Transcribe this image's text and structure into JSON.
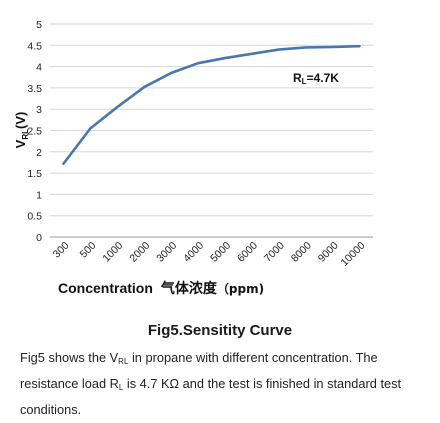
{
  "chart_data": {
    "type": "line",
    "x_categories": [
      "300",
      "500",
      "1000",
      "2000",
      "3000",
      "4000",
      "5000",
      "6000",
      "7000",
      "8000",
      "9000",
      "10000"
    ],
    "y_ticks": [
      "0",
      "0.5",
      "1",
      "1.5",
      "2",
      "2.5",
      "3",
      "3.5",
      "4",
      "4.5",
      "5"
    ],
    "ylim": [
      0,
      5
    ],
    "y_points": [
      1.72,
      2.55,
      3.05,
      3.52,
      3.85,
      4.08,
      4.2,
      4.3,
      4.4,
      4.45,
      4.46,
      4.48
    ],
    "series_color": "#4a76b0",
    "grid": "horizontal",
    "annotation": "R<sub>L</sub>=4.7K",
    "annotation_parts": {
      "base": "R",
      "sub": "L",
      "rest": "=4.7K"
    },
    "ylabel_parts": {
      "base": "V",
      "sub": "RL",
      "rest": "(V)"
    },
    "xlabel": "Concentration",
    "xlabel_cjk": "气体浓度",
    "xlabel_unit": "（ppm)"
  },
  "caption": "Fig5.Sensitity Curve",
  "description": {
    "p1": "Fig5 shows the V",
    "sub1": "RL",
    "p2": " in propane with different concentration. The resistance load R",
    "sub2": "L",
    "p3": " is 4.7 KΩ and the test is finished in standard test conditions."
  }
}
